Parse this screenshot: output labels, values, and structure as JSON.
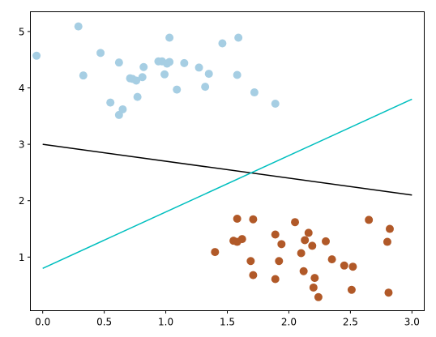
{
  "chart_data": {
    "type": "scatter",
    "title": "",
    "xlabel": "",
    "ylabel": "",
    "xlim": [
      -0.1,
      3.1
    ],
    "ylim": [
      0.05,
      5.35
    ],
    "grid": false,
    "xticks": [
      0.0,
      0.5,
      1.0,
      1.5,
      2.0,
      2.5,
      3.0
    ],
    "xtick_labels": [
      "0.0",
      "0.5",
      "1.0",
      "1.5",
      "2.0",
      "2.5",
      "3.0"
    ],
    "yticks": [
      1,
      2,
      3,
      4,
      5
    ],
    "ytick_labels": [
      "1",
      "2",
      "3",
      "4",
      "5"
    ],
    "scatter_series": [
      {
        "color": "#a6cee3",
        "points": [
          [
            -0.05,
            4.57
          ],
          [
            0.29,
            5.09
          ],
          [
            0.33,
            4.22
          ],
          [
            0.47,
            4.62
          ],
          [
            0.55,
            3.74
          ],
          [
            0.62,
            4.45
          ],
          [
            0.62,
            3.52
          ],
          [
            0.65,
            3.62
          ],
          [
            0.71,
            4.17
          ],
          [
            0.73,
            4.16
          ],
          [
            0.76,
            4.13
          ],
          [
            0.77,
            3.84
          ],
          [
            0.81,
            4.19
          ],
          [
            0.82,
            4.37
          ],
          [
            0.94,
            4.47
          ],
          [
            0.97,
            4.47
          ],
          [
            0.99,
            4.24
          ],
          [
            1.01,
            4.43
          ],
          [
            1.03,
            4.89
          ],
          [
            1.03,
            4.46
          ],
          [
            1.09,
            3.97
          ],
          [
            1.15,
            4.44
          ],
          [
            1.27,
            4.36
          ],
          [
            1.32,
            4.02
          ],
          [
            1.35,
            4.25
          ],
          [
            1.46,
            4.79
          ],
          [
            1.58,
            4.23
          ],
          [
            1.59,
            4.89
          ],
          [
            1.72,
            3.92
          ],
          [
            1.89,
            3.72
          ]
        ]
      },
      {
        "color": "#b15928",
        "points": [
          [
            1.4,
            1.09
          ],
          [
            1.55,
            1.29
          ],
          [
            1.58,
            1.68
          ],
          [
            1.58,
            1.27
          ],
          [
            1.62,
            1.32
          ],
          [
            1.69,
            0.93
          ],
          [
            1.71,
            1.67
          ],
          [
            1.71,
            0.68
          ],
          [
            1.89,
            1.4
          ],
          [
            1.89,
            0.61
          ],
          [
            1.92,
            0.93
          ],
          [
            1.94,
            1.23
          ],
          [
            2.05,
            1.62
          ],
          [
            2.1,
            1.07
          ],
          [
            2.12,
            0.75
          ],
          [
            2.13,
            1.3
          ],
          [
            2.16,
            1.43
          ],
          [
            2.19,
            1.2
          ],
          [
            2.2,
            0.46
          ],
          [
            2.21,
            0.63
          ],
          [
            2.24,
            0.29
          ],
          [
            2.3,
            1.28
          ],
          [
            2.35,
            0.96
          ],
          [
            2.45,
            0.85
          ],
          [
            2.51,
            0.42
          ],
          [
            2.52,
            0.83
          ],
          [
            2.65,
            1.66
          ],
          [
            2.8,
            1.27
          ],
          [
            2.81,
            0.37
          ],
          [
            2.82,
            1.5
          ]
        ]
      }
    ],
    "lines": [
      {
        "color": "#000000",
        "x": [
          0.0,
          3.0
        ],
        "y": [
          3.0,
          2.1
        ]
      },
      {
        "color": "#00bfbf",
        "x": [
          0.0,
          3.0
        ],
        "y": [
          0.8,
          3.8
        ]
      }
    ]
  }
}
